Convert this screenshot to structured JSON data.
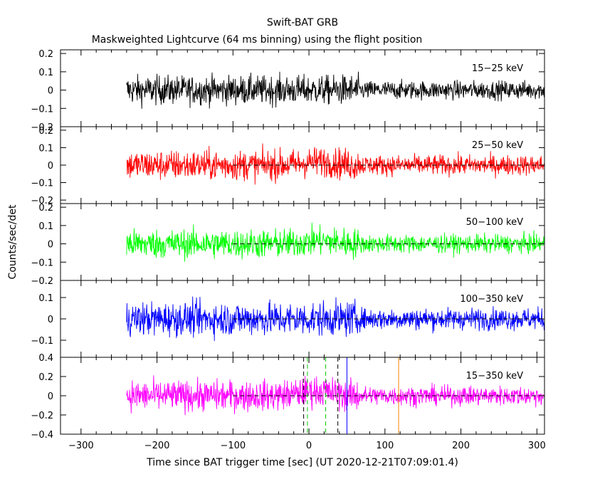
{
  "chart_data": {
    "type": "line",
    "title": "Swift-BAT GRB",
    "subtitle": "Maskweighted Lightcurve (64 ms binning) using the flight position",
    "xlabel": "Time since BAT trigger time [sec] (UT 2020-12-21T07:09:01.4)",
    "ylabel": "Counts/sec/det",
    "xlim": [
      -327,
      310
    ],
    "xticks": [
      -300,
      -200,
      -100,
      0,
      100,
      200,
      300
    ],
    "xtick_labels": [
      "−300",
      "−200",
      "−100",
      "0",
      "100",
      "200",
      "300"
    ],
    "data_start": -240,
    "data_end": 310,
    "panels": [
      {
        "band": "15−25 keV",
        "color": "#000000",
        "ylim": [
          -0.2,
          0.22
        ],
        "yticks": [
          0.2,
          0.1,
          0,
          -0.1,
          -0.2
        ],
        "ytick_labels": [
          "0.2",
          "0.1",
          "0",
          "−0.1",
          "−0.2"
        ],
        "noise_sigma_early": 0.055,
        "noise_sigma_late": 0.035,
        "transition_time": 65,
        "baseline": false,
        "vlines": []
      },
      {
        "band": "25−50 keV",
        "color": "#ff0000",
        "ylim": [
          -0.22,
          0.22
        ],
        "yticks": [
          0.2,
          0.1,
          0,
          -0.1,
          -0.2
        ],
        "ytick_labels": [
          "0.2",
          "0.1",
          "0",
          "−0.1",
          "−0.2"
        ],
        "noise_sigma_early": 0.06,
        "noise_sigma_late": 0.04,
        "transition_time": 65,
        "bump_time": 15,
        "bump_amp": 0.02,
        "baseline": true,
        "vlines": []
      },
      {
        "band": "50−100 keV",
        "color": "#00ff00",
        "ylim": [
          -0.2,
          0.22
        ],
        "yticks": [
          0.2,
          0.1,
          0,
          -0.1,
          -0.2
        ],
        "ytick_labels": [
          "0.2",
          "0.1",
          "0",
          "−0.1",
          "−0.2"
        ],
        "noise_sigma_early": 0.055,
        "noise_sigma_late": 0.035,
        "transition_time": 65,
        "bump_time": 15,
        "bump_amp": 0.015,
        "baseline": true,
        "vlines": []
      },
      {
        "band": "100−350 keV",
        "color": "#0000ff",
        "ylim": [
          -0.18,
          0.18
        ],
        "yticks": [
          0.1,
          0,
          -0.1
        ],
        "ytick_labels": [
          "0.1",
          "0",
          "−0.1"
        ],
        "noise_sigma_early": 0.055,
        "noise_sigma_late": 0.035,
        "transition_time": 65,
        "baseline": true,
        "vlines": []
      },
      {
        "band": "15−350 keV",
        "color": "#ff00ff",
        "ylim": [
          -0.4,
          0.4
        ],
        "yticks": [
          0.4,
          0.2,
          0,
          -0.2,
          -0.4
        ],
        "ytick_labels": [
          "0.4",
          "0.2",
          "0",
          "−0.2",
          "−0.4"
        ],
        "noise_sigma_early": 0.11,
        "noise_sigma_late": 0.07,
        "transition_time": 65,
        "bump_time": 10,
        "bump_amp": 0.05,
        "baseline": true,
        "vlines": [
          {
            "x": -7,
            "color": "#000000",
            "style": "dashed"
          },
          {
            "x": -2,
            "color": "#00cc00",
            "style": "dashed"
          },
          {
            "x": 22,
            "color": "#00cc00",
            "style": "dashed"
          },
          {
            "x": 38,
            "color": "#000000",
            "style": "dashed"
          },
          {
            "x": 50,
            "color": "#0000ff",
            "style": "solid"
          },
          {
            "x": 118,
            "color": "#ff8000",
            "style": "solid"
          }
        ]
      }
    ]
  }
}
